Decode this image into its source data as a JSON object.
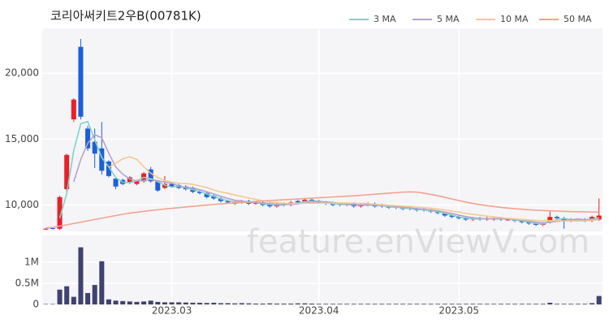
{
  "chart_data": {
    "type": "candlestick",
    "title": "코리아써키트2우B(00781K)",
    "watermark": "feature.enViewV.com",
    "categories": [
      null,
      null,
      null,
      null,
      null,
      null,
      null,
      null,
      null,
      null,
      null,
      null,
      null,
      null,
      null,
      null,
      null,
      null,
      "2023.03",
      null,
      null,
      null,
      null,
      null,
      null,
      null,
      null,
      null,
      null,
      null,
      null,
      null,
      null,
      null,
      null,
      null,
      null,
      null,
      null,
      "2023.04",
      null,
      null,
      null,
      null,
      null,
      null,
      null,
      null,
      null,
      null,
      null,
      null,
      null,
      null,
      null,
      null,
      null,
      null,
      null,
      "2023.05",
      null,
      null,
      null,
      null,
      null,
      null,
      null,
      null,
      null,
      null,
      null,
      null,
      null,
      null,
      null,
      null,
      null,
      null,
      null,
      null
    ],
    "open": [
      8200,
      8250,
      8200,
      11200,
      16500,
      22000,
      15800,
      14800,
      14300,
      13300,
      12000,
      11900,
      11700,
      11600,
      11800,
      12700,
      11800,
      11300,
      11600,
      11500,
      11400,
      11300,
      11000,
      10900,
      10700,
      10500,
      10300,
      10100,
      10200,
      10300,
      10100,
      10200,
      10100,
      9900,
      10100,
      10000,
      10300,
      10200,
      10400,
      10300,
      10200,
      10100,
      10100,
      10000,
      10100,
      9900,
      10000,
      10100,
      10000,
      9900,
      9900,
      9800,
      9800,
      9700,
      9700,
      9600,
      9500,
      9400,
      9200,
      9100,
      9000,
      8900,
      9000,
      8900,
      8900,
      9000,
      8900,
      8900,
      8800,
      8700,
      8600,
      8500,
      8700,
      9100,
      9000,
      8800,
      8900,
      8900,
      8800,
      8900
    ],
    "high": [
      8250,
      8300,
      10700,
      13900,
      18100,
      22600,
      16000,
      15800,
      16300,
      13400,
      12100,
      12000,
      12200,
      11900,
      12500,
      12900,
      11900,
      12200,
      11700,
      11600,
      11500,
      11400,
      11100,
      11000,
      10800,
      10600,
      10400,
      10300,
      10400,
      10400,
      10300,
      10300,
      10200,
      10200,
      10200,
      10300,
      10400,
      10500,
      10500,
      10400,
      10300,
      10200,
      10200,
      10200,
      10200,
      10100,
      10200,
      10200,
      10100,
      10000,
      10000,
      9900,
      9900,
      9800,
      9800,
      9700,
      9600,
      9500,
      9300,
      9200,
      9100,
      9100,
      9100,
      9100,
      9100,
      9100,
      9000,
      9000,
      8900,
      8800,
      8700,
      8700,
      9500,
      9200,
      9100,
      9000,
      9000,
      9000,
      9200,
      10500
    ],
    "low": [
      8150,
      8150,
      8100,
      11000,
      16300,
      16500,
      14100,
      12800,
      12300,
      12100,
      11200,
      11500,
      11600,
      11500,
      11700,
      11700,
      11000,
      11200,
      11300,
      11200,
      11100,
      10900,
      10800,
      10500,
      10400,
      10200,
      10100,
      10000,
      10100,
      10000,
      10000,
      9900,
      9800,
      9800,
      9900,
      9900,
      10100,
      10100,
      10200,
      10100,
      10000,
      9900,
      9900,
      9900,
      9800,
      9800,
      9900,
      9800,
      9800,
      9700,
      9700,
      9600,
      9600,
      9500,
      9500,
      9400,
      9300,
      9100,
      9000,
      8900,
      8800,
      8800,
      8800,
      8800,
      8800,
      8800,
      8800,
      8700,
      8600,
      8500,
      8400,
      8400,
      8600,
      8900,
      8200,
      8700,
      8800,
      8700,
      8700,
      8800
    ],
    "close": [
      8200,
      8200,
      10600,
      13800,
      18000,
      16700,
      14300,
      13900,
      12600,
      12200,
      11400,
      11600,
      12100,
      11800,
      12400,
      11800,
      11100,
      11600,
      11400,
      11300,
      11200,
      11000,
      10900,
      10600,
      10500,
      10300,
      10200,
      10200,
      10300,
      10100,
      10200,
      10000,
      9900,
      10100,
      10000,
      10200,
      10200,
      10400,
      10300,
      10200,
      10100,
      10000,
      10000,
      10100,
      9900,
      10000,
      10100,
      9900,
      9900,
      9800,
      9800,
      9700,
      9700,
      9600,
      9600,
      9500,
      9400,
      9200,
      9100,
      9000,
      8900,
      9000,
      8900,
      9000,
      9000,
      8900,
      8900,
      8800,
      8700,
      8600,
      8500,
      8600,
      9100,
      9000,
      8800,
      8900,
      8900,
      8800,
      9100,
      9200
    ],
    "up_color": "#e8202a",
    "down_color": "#1e5fd8",
    "series": [
      {
        "name": "3 MA",
        "color": "#7fd3c8",
        "values": [
          null,
          null,
          9000,
          10867,
          14133,
          16167,
          16333,
          14967,
          13600,
          12900,
          12067,
          11733,
          11700,
          11833,
          12100,
          12000,
          11767,
          11500,
          11367,
          11433,
          11300,
          11167,
          11033,
          10833,
          10667,
          10467,
          10333,
          10233,
          10233,
          10200,
          10200,
          10100,
          10033,
          10000,
          10000,
          10100,
          10133,
          10267,
          10300,
          10300,
          10200,
          10100,
          10033,
          10033,
          10000,
          10000,
          10000,
          10000,
          9967,
          9867,
          9833,
          9767,
          9733,
          9667,
          9633,
          9567,
          9500,
          9367,
          9233,
          9100,
          9000,
          8967,
          8933,
          8967,
          8967,
          8967,
          8933,
          8867,
          8800,
          8700,
          8600,
          8567,
          8733,
          8900,
          8967,
          8900,
          8867,
          8867,
          8933,
          9033
        ]
      },
      {
        "name": "5 MA",
        "color": "#b3a3cc",
        "values": [
          null,
          null,
          null,
          null,
          11760,
          13460,
          14680,
          15340,
          15100,
          13940,
          12880,
          12340,
          11980,
          11820,
          11860,
          11940,
          11840,
          11740,
          11660,
          11440,
          11320,
          11300,
          11160,
          11000,
          10840,
          10660,
          10500,
          10360,
          10300,
          10220,
          10200,
          10160,
          10100,
          10060,
          10040,
          10040,
          10080,
          10180,
          10220,
          10260,
          10240,
          10200,
          10120,
          10080,
          10020,
          10000,
          10020,
          10000,
          9960,
          9940,
          9900,
          9820,
          9780,
          9720,
          9680,
          9620,
          9560,
          9460,
          9360,
          9240,
          9120,
          9040,
          8980,
          8960,
          8960,
          8960,
          8940,
          8920,
          8860,
          8780,
          8700,
          8640,
          8700,
          8760,
          8800,
          8880,
          8940,
          8880,
          8900,
          8980
        ]
      },
      {
        "name": "10 MA",
        "color": "#f5c98e",
        "values": [
          null,
          null,
          null,
          null,
          null,
          null,
          null,
          null,
          null,
          12850,
          13170,
          13510,
          13660,
          13460,
          12900,
          12410,
          12090,
          11860,
          11740,
          11650,
          11630,
          11570,
          11450,
          11330,
          11140,
          10990,
          10900,
          10760,
          10650,
          10530,
          10430,
          10330,
          10230,
          10180,
          10130,
          10120,
          10120,
          10140,
          10140,
          10150,
          10140,
          10140,
          10150,
          10150,
          10140,
          10120,
          10110,
          10060,
          10020,
          9980,
          9950,
          9920,
          9890,
          9840,
          9810,
          9760,
          9690,
          9620,
          9540,
          9460,
          9370,
          9300,
          9220,
          9160,
          9100,
          9040,
          8990,
          8950,
          8910,
          8870,
          8830,
          8790,
          8810,
          8810,
          8790,
          8790,
          8790,
          8790,
          8830,
          8890
        ]
      },
      {
        "name": "50 MA",
        "color": "#f3a28e",
        "values": [
          8250,
          8300,
          8400,
          8500,
          8600,
          8700,
          8800,
          8900,
          9000,
          9100,
          9200,
          9300,
          9380,
          9450,
          9520,
          9580,
          9640,
          9700,
          9750,
          9800,
          9850,
          9900,
          9950,
          10000,
          10040,
          10080,
          10120,
          10160,
          10200,
          10240,
          10280,
          10310,
          10340,
          10370,
          10400,
          10430,
          10460,
          10490,
          10520,
          10550,
          10580,
          10610,
          10640,
          10670,
          10700,
          10740,
          10780,
          10820,
          10860,
          10900,
          10940,
          10980,
          11000,
          10980,
          10900,
          10800,
          10700,
          10580,
          10460,
          10340,
          10220,
          10120,
          10030,
          9950,
          9880,
          9820,
          9770,
          9720,
          9680,
          9640,
          9610,
          9580,
          9560,
          9540,
          9520,
          9500,
          9490,
          9480,
          9470,
          9460
        ]
      }
    ],
    "ylim": [
      8000,
      23400
    ],
    "yticks": [
      {
        "value": 10000,
        "label": "10,000"
      },
      {
        "value": 15000,
        "label": "15,000"
      },
      {
        "value": 20000,
        "label": "20,000"
      }
    ],
    "grid": true,
    "volume": {
      "color": "#3f4270",
      "ylim": [
        0,
        1630000
      ],
      "yticks": [
        0,
        {
          "value": 500000,
          "label": "0.5M"
        },
        {
          "value": 1000000,
          "label": "1M"
        }
      ],
      "values": [
        10000,
        10000,
        350000,
        430000,
        180000,
        1350000,
        270000,
        460000,
        1020000,
        120000,
        90000,
        80000,
        70000,
        60000,
        70000,
        90000,
        60000,
        50000,
        50000,
        50000,
        45000,
        40000,
        40000,
        35000,
        40000,
        30000,
        30000,
        25000,
        30000,
        25000,
        20000,
        20000,
        25000,
        20000,
        20000,
        20000,
        25000,
        25000,
        20000,
        15000,
        15000,
        15000,
        15000,
        15000,
        15000,
        15000,
        15000,
        15000,
        15000,
        15000,
        15000,
        15000,
        15000,
        15000,
        15000,
        15000,
        15000,
        15000,
        15000,
        15000,
        15000,
        15000,
        15000,
        15000,
        15000,
        15000,
        15000,
        15000,
        15000,
        15000,
        15000,
        15000,
        40000,
        15000,
        15000,
        15000,
        15000,
        15000,
        30000,
        200000
      ]
    }
  }
}
